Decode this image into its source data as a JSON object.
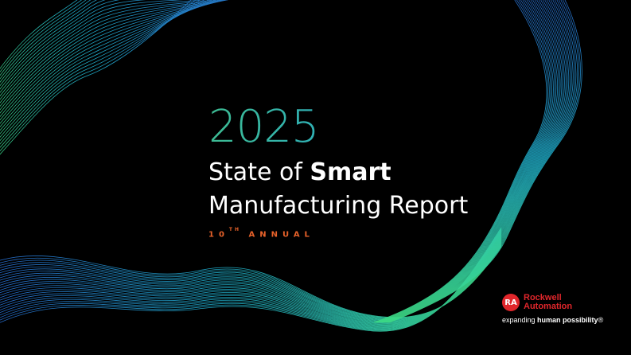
{
  "cover": {
    "year": "2025",
    "title_line1_light": "State of ",
    "title_line1_bold": "Smart",
    "title_line2": "Manufacturing Report",
    "edition_number": "10",
    "edition_suffix": "TH",
    "edition_label": " ANNUAL"
  },
  "brand": {
    "logo_mark": "RA",
    "name_line1": "Rockwell",
    "name_line2": "Automation",
    "tagline_prefix": "expanding ",
    "tagline_bold": "human possibility",
    "tagline_mark": "®"
  },
  "colors": {
    "background": "#000000",
    "accent_orange": "#e8622a",
    "brand_red": "#e0262b",
    "wave_green": "#3ddc84",
    "wave_cyan": "#22b8d6",
    "wave_blue": "#2a6fd6"
  }
}
